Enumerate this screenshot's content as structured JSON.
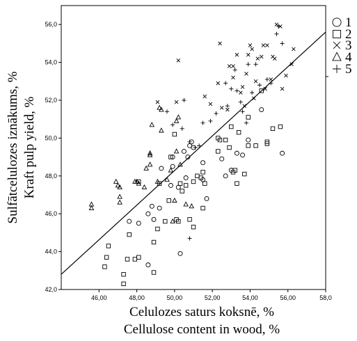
{
  "chart_data": {
    "type": "scatter",
    "title": "",
    "xlabel_lines": [
      "Celulozes saturs koksnē, %",
      "Cellulose content in wood, %"
    ],
    "ylabel_lines": [
      "Sulfātcelulozes iznākums, %",
      "Kraft pulp yield, %"
    ],
    "xlim": [
      44.0,
      58.0
    ],
    "ylim": [
      42.0,
      57.0
    ],
    "x_ticks": [
      46,
      48,
      50,
      52,
      54,
      56,
      58
    ],
    "y_ticks": [
      42,
      44,
      46,
      48,
      50,
      52,
      54,
      56
    ],
    "x_tick_labels": [
      "46,00",
      "48,00",
      "50,00",
      "52,00",
      "54,00",
      "56,00",
      "58,0"
    ],
    "y_tick_labels": [
      "42,0",
      "44,0",
      "46,0",
      "48,0",
      "50,0",
      "52,0",
      "54,0",
      "56,0"
    ],
    "grid": false,
    "legend_position": "right",
    "fit_line": {
      "x": [
        44.0,
        58.0
      ],
      "y": [
        42.8,
        55.6
      ]
    },
    "series": [
      {
        "name": "1",
        "marker": "circle",
        "points": [
          [
            47.6,
            45.6
          ],
          [
            48.1,
            45.5
          ],
          [
            48.6,
            46.0
          ],
          [
            48.9,
            45.7
          ],
          [
            48.8,
            46.4
          ],
          [
            49.2,
            46.3
          ],
          [
            49.8,
            47.5
          ],
          [
            49.9,
            48.5
          ],
          [
            49.9,
            49.0
          ],
          [
            50.2,
            47.4
          ],
          [
            50.5,
            49.3
          ],
          [
            50.6,
            47.9
          ],
          [
            50.7,
            49.0
          ],
          [
            50.8,
            49.6
          ],
          [
            51.0,
            49.5
          ],
          [
            50.9,
            49.8
          ],
          [
            51.5,
            48.7
          ],
          [
            51.7,
            46.8
          ],
          [
            52.5,
            48.9
          ],
          [
            52.7,
            48.0
          ],
          [
            53.0,
            48.3
          ],
          [
            53.3,
            49.2
          ],
          [
            53.6,
            49.1
          ],
          [
            53.9,
            49.9
          ],
          [
            54.6,
            51.5
          ],
          [
            55.7,
            49.2
          ],
          [
            48.6,
            43.3
          ],
          [
            50.3,
            43.9
          ],
          [
            51.5,
            47.8
          ],
          [
            49.3,
            48.4
          ]
        ]
      },
      {
        "name": "2",
        "marker": "square",
        "points": [
          [
            46.3,
            43.2
          ],
          [
            46.4,
            43.7
          ],
          [
            46.5,
            44.3
          ],
          [
            47.3,
            42.8
          ],
          [
            47.3,
            42.3
          ],
          [
            47.5,
            43.6
          ],
          [
            47.6,
            44.9
          ],
          [
            47.9,
            43.6
          ],
          [
            48.1,
            43.7
          ],
          [
            48.9,
            42.9
          ],
          [
            48.9,
            44.5
          ],
          [
            49.1,
            45.2
          ],
          [
            49.2,
            47.6
          ],
          [
            49.5,
            45.6
          ],
          [
            49.7,
            46.7
          ],
          [
            49.8,
            49.0
          ],
          [
            50.1,
            45.7
          ],
          [
            50.2,
            45.6
          ],
          [
            50.3,
            47.6
          ],
          [
            50.4,
            47.2
          ],
          [
            50.6,
            47.5
          ],
          [
            50.8,
            45.7
          ],
          [
            51.0,
            45.3
          ],
          [
            51.0,
            47.7
          ],
          [
            51.2,
            48.0
          ],
          [
            51.4,
            47.9
          ],
          [
            51.5,
            48.2
          ],
          [
            51.5,
            46.3
          ],
          [
            51.6,
            47.6
          ],
          [
            52.3,
            49.3
          ],
          [
            52.4,
            49.9
          ],
          [
            52.7,
            49.9
          ],
          [
            52.9,
            49.5
          ],
          [
            53.0,
            50.6
          ],
          [
            53.1,
            48.2
          ],
          [
            53.2,
            48.3
          ],
          [
            53.3,
            47.6
          ],
          [
            53.4,
            50.3
          ],
          [
            53.7,
            48.1
          ],
          [
            53.9,
            49.6
          ],
          [
            53.9,
            51.1
          ],
          [
            54.3,
            49.6
          ],
          [
            54.6,
            52.5
          ],
          [
            54.9,
            49.8
          ],
          [
            54.9,
            49.7
          ],
          [
            55.2,
            50.5
          ],
          [
            55.6,
            50.6
          ],
          [
            52.3,
            50.0
          ],
          [
            48.1,
            47.7
          ],
          [
            50.0,
            50.2
          ]
        ]
      },
      {
        "name": "3",
        "marker": "x",
        "points": [
          [
            49.1,
            51.9
          ],
          [
            50.1,
            51.9
          ],
          [
            50.2,
            54.1
          ],
          [
            51.6,
            52.2
          ],
          [
            52.3,
            52.9
          ],
          [
            52.5,
            51.6
          ],
          [
            52.4,
            55.0
          ],
          [
            52.8,
            51.5
          ],
          [
            52.9,
            53.8
          ],
          [
            53.1,
            53.2
          ],
          [
            53.1,
            53.8
          ],
          [
            53.3,
            54.4
          ],
          [
            53.5,
            52.4
          ],
          [
            53.6,
            52.7
          ],
          [
            53.8,
            53.4
          ],
          [
            53.9,
            54.4
          ],
          [
            54.0,
            54.9
          ],
          [
            54.1,
            54.7
          ],
          [
            54.2,
            52.1
          ],
          [
            54.3,
            53.0
          ],
          [
            54.4,
            54.2
          ],
          [
            54.6,
            54.3
          ],
          [
            54.7,
            54.9
          ],
          [
            54.8,
            52.6
          ],
          [
            54.9,
            54.9
          ],
          [
            55.1,
            53.1
          ],
          [
            55.2,
            54.3
          ],
          [
            55.3,
            54.2
          ],
          [
            55.4,
            56.0
          ],
          [
            55.6,
            55.9
          ],
          [
            55.7,
            52.6
          ],
          [
            55.9,
            53.3
          ],
          [
            56.2,
            53.9
          ],
          [
            56.3,
            54.7
          ],
          [
            51.9,
            51.8
          ],
          [
            53.7,
            51.7
          ]
        ]
      },
      {
        "name": "4",
        "marker": "triangle",
        "points": [
          [
            45.6,
            46.3
          ],
          [
            45.6,
            46.5
          ],
          [
            46.9,
            47.7
          ],
          [
            47.0,
            47.5
          ],
          [
            47.1,
            47.4
          ],
          [
            47.1,
            46.9
          ],
          [
            47.1,
            46.6
          ],
          [
            47.9,
            47.7
          ],
          [
            48.0,
            47.7
          ],
          [
            48.1,
            47.6
          ],
          [
            48.5,
            48.4
          ],
          [
            48.7,
            48.6
          ],
          [
            48.7,
            49.1
          ],
          [
            48.7,
            49.2
          ],
          [
            48.8,
            50.7
          ],
          [
            49.1,
            47.7
          ],
          [
            49.3,
            51.5
          ],
          [
            49.2,
            51.6
          ],
          [
            49.3,
            50.4
          ],
          [
            49.6,
            47.8
          ],
          [
            49.8,
            48.3
          ],
          [
            49.9,
            45.6
          ],
          [
            50.0,
            46.7
          ],
          [
            50.1,
            50.9
          ],
          [
            50.2,
            51.1
          ],
          [
            50.1,
            49.3
          ],
          [
            50.3,
            48.6
          ],
          [
            50.6,
            46.5
          ],
          [
            48.4,
            47.4
          ],
          [
            50.9,
            46.4
          ]
        ]
      },
      {
        "name": "5",
        "marker": "plus",
        "points": [
          [
            49.6,
            51.4
          ],
          [
            50.4,
            50.5
          ],
          [
            50.5,
            52.0
          ],
          [
            50.8,
            49.8
          ],
          [
            50.8,
            44.7
          ],
          [
            51.1,
            49.5
          ],
          [
            51.5,
            50.8
          ],
          [
            51.9,
            50.9
          ],
          [
            52.2,
            51.3
          ],
          [
            52.7,
            52.9
          ],
          [
            53.0,
            52.6
          ],
          [
            53.2,
            53.6
          ],
          [
            53.3,
            52.5
          ],
          [
            53.5,
            51.9
          ],
          [
            53.6,
            51.4
          ],
          [
            53.8,
            50.8
          ],
          [
            54.1,
            52.4
          ],
          [
            54.3,
            53.9
          ],
          [
            54.5,
            52.8
          ],
          [
            54.9,
            53.1
          ],
          [
            55.1,
            52.9
          ],
          [
            55.4,
            55.5
          ],
          [
            55.5,
            55.9
          ],
          [
            55.7,
            55.0
          ],
          [
            51.3,
            49.6
          ],
          [
            53.9,
            53.9
          ],
          [
            52.8,
            51.7
          ],
          [
            49.9,
            50.7
          ]
        ]
      }
    ]
  }
}
